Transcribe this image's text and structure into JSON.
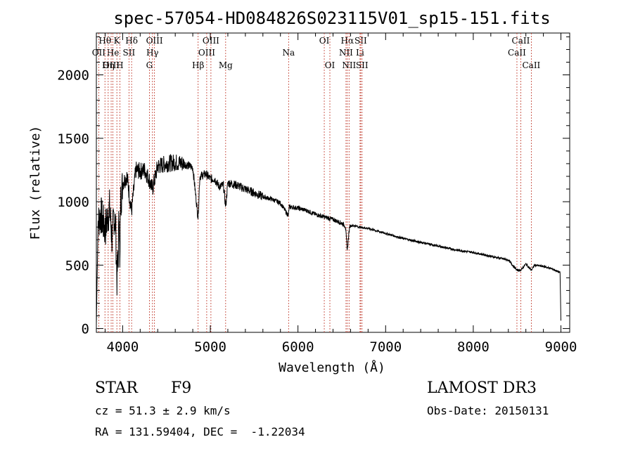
{
  "chart_data": {
    "type": "line",
    "title": "spec-57054-HD084826S023115V01_sp15-151.fits",
    "xlabel": "Wavelength (Å)",
    "ylabel": "Flux (relative)",
    "xlim": [
      3700,
      9100
    ],
    "ylim": [
      -30,
      2330
    ],
    "xticks": [
      4000,
      5000,
      6000,
      7000,
      8000,
      9000
    ],
    "yticks": [
      0,
      500,
      1000,
      1500,
      2000
    ],
    "spectrum_anchor_points": {
      "x": [
        3700,
        3720,
        3750,
        3800,
        3850,
        3880,
        3900,
        3920,
        3934,
        3950,
        3960,
        3968,
        3975,
        3990,
        4000,
        4050,
        4101,
        4150,
        4200,
        4250,
        4300,
        4340,
        4400,
        4500,
        4600,
        4700,
        4800,
        4861,
        4880,
        4950,
        5000,
        5050,
        5100,
        5150,
        5175,
        5200,
        5300,
        5400,
        5500,
        5600,
        5700,
        5800,
        5890,
        5900,
        6000,
        6100,
        6200,
        6300,
        6400,
        6500,
        6540,
        6563,
        6590,
        6650,
        6700,
        6800,
        6900,
        7000,
        7200,
        7400,
        7600,
        7800,
        8000,
        8200,
        8400,
        8498,
        8542,
        8600,
        8662,
        8700,
        8800,
        8900,
        8990,
        9000
      ],
      "y": [
        30,
        850,
        900,
        780,
        950,
        700,
        900,
        820,
        380,
        600,
        1000,
        380,
        1000,
        1080,
        1150,
        1200,
        920,
        1250,
        1240,
        1250,
        1180,
        1100,
        1280,
        1300,
        1310,
        1300,
        1270,
        870,
        1200,
        1220,
        1180,
        1180,
        1120,
        1130,
        960,
        1150,
        1130,
        1100,
        1070,
        1040,
        1020,
        990,
        890,
        960,
        950,
        930,
        900,
        880,
        860,
        830,
        810,
        620,
        810,
        810,
        800,
        790,
        770,
        750,
        710,
        680,
        650,
        620,
        600,
        570,
        540,
        460,
        460,
        510,
        460,
        500,
        490,
        470,
        440,
        60
      ]
    },
    "lines": [
      {
        "label": "Hθ",
        "x": 3798,
        "row": 1
      },
      {
        "label": "OII",
        "x": 3727,
        "row": 2
      },
      {
        "label": "OIII",
        "x": 3869,
        "row": 3
      },
      {
        "label": "K",
        "x": 3934,
        "row": 1
      },
      {
        "label": "He",
        "x": 3889,
        "row": 2
      },
      {
        "label": "Hη",
        "x": 3835,
        "row": 3
      },
      {
        "label": "H",
        "x": 3968,
        "row": 3
      },
      {
        "label": "Hδ",
        "x": 4102,
        "row": 1
      },
      {
        "label": "SII",
        "x": 4072,
        "row": 2
      },
      {
        "label": "OIII",
        "x": 4363,
        "row": 1
      },
      {
        "label": "Hγ",
        "x": 4340,
        "row": 2
      },
      {
        "label": "G",
        "x": 4305,
        "row": 3
      },
      {
        "label": "Hβ",
        "x": 4861,
        "row": 3
      },
      {
        "label": "OIII",
        "x": 5007,
        "row": 1
      },
      {
        "label": "OIII",
        "x": 4959,
        "row": 2
      },
      {
        "label": "Mg",
        "x": 5175,
        "row": 3
      },
      {
        "label": "Na",
        "x": 5893,
        "row": 2
      },
      {
        "label": "OI",
        "x": 6300,
        "row": 1
      },
      {
        "label": "OI",
        "x": 6364,
        "row": 3
      },
      {
        "label": "Hα",
        "x": 6563,
        "row": 1
      },
      {
        "label": "SII",
        "x": 6716,
        "row": 1
      },
      {
        "label": "NII",
        "x": 6548,
        "row": 2
      },
      {
        "label": "Li",
        "x": 6708,
        "row": 2
      },
      {
        "label": "NII",
        "x": 6583,
        "row": 3
      },
      {
        "label": "SII",
        "x": 6731,
        "row": 3
      },
      {
        "label": "CaII",
        "x": 8542,
        "row": 1
      },
      {
        "label": "CaII",
        "x": 8498,
        "row": 2
      },
      {
        "label": "CaII",
        "x": 8662,
        "row": 3
      }
    ]
  },
  "info": {
    "class_label": "STAR",
    "subclass": "F9",
    "survey": "LAMOST DR3",
    "cz": "cz = 51.3 ± 2.9 km/s",
    "obs_date": "Obs-Date: 20150131",
    "radec": "RA = 131.59404, DEC =  -1.22034"
  },
  "colors": {
    "line_marker": "#c0392b",
    "spectrum": "#000000"
  }
}
